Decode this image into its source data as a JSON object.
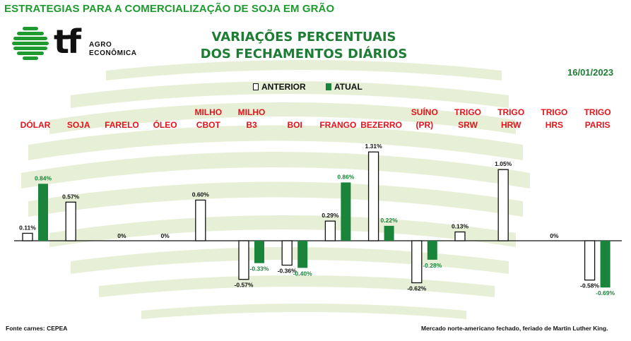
{
  "header": {
    "title": "ESTRATEGIAS PARA A COMERCIALIZAÇÃO DE SOJA EM GRÃO",
    "logo_mark": "tf",
    "logo_text_1": "AGRO",
    "logo_text_2": "ECONÔMICA"
  },
  "chart_title_1": "VARIAÇÕES PERCENTUAIS",
  "chart_title_2": "DOS FECHAMENTOS DIÁRIOS",
  "date": "16/01/2023",
  "footer_left": "Fonte carnes: CEPEA",
  "footer_right": "Mercado norte-americano fechado,  feriado de Martin Luther King.",
  "colors": {
    "brand_green": "#1e9a2e",
    "bar_green": "#19843a",
    "category_red": "#e4141c",
    "watermark": "#e7efd6"
  },
  "chart_data": {
    "type": "bar",
    "categories": [
      [
        "DÓLAR"
      ],
      [
        "SOJA"
      ],
      [
        "FARELO"
      ],
      [
        "ÓLEO"
      ],
      [
        "MILHO",
        "CBOT"
      ],
      [
        "MILHO",
        "B3"
      ],
      [
        "BOI"
      ],
      [
        "FRANGO"
      ],
      [
        "BEZERRO"
      ],
      [
        "SUÍNO",
        "(PR)"
      ],
      [
        "TRIGO",
        "SRW"
      ],
      [
        "TRIGO",
        "HRW"
      ],
      [
        "TRIGO",
        "HRS"
      ],
      [
        "TRIGO",
        "PARIS"
      ]
    ],
    "series": [
      {
        "name": "ANTERIOR",
        "style": "outline",
        "values": [
          0.11,
          0.57,
          null,
          null,
          0.6,
          -0.57,
          -0.36,
          0.29,
          1.31,
          -0.62,
          0.13,
          1.05,
          null,
          -0.58
        ],
        "labels": [
          "0.11%",
          "0.57%",
          "",
          "",
          "0.60%",
          "-0.57%",
          "-0.36%",
          "0.29%",
          "1.31%",
          "-0.62%",
          "0.13%",
          "1.05%",
          "",
          "-0.58%"
        ]
      },
      {
        "name": "ATUAL",
        "style": "filled",
        "values": [
          0.84,
          null,
          null,
          null,
          null,
          -0.33,
          -0.4,
          0.86,
          0.22,
          -0.28,
          null,
          null,
          null,
          -0.69
        ],
        "labels": [
          "0.84%",
          "",
          "",
          "",
          "",
          "-0.33%",
          "-0.40%",
          "0.86%",
          "0.22%",
          "-0.28%",
          "",
          "",
          "",
          "-0.69%"
        ]
      }
    ],
    "zero_labels": [
      {
        "category_index": 2,
        "text": "0%"
      },
      {
        "category_index": 3,
        "text": "0%"
      },
      {
        "category_index": 12,
        "text": "0%"
      }
    ]
  }
}
